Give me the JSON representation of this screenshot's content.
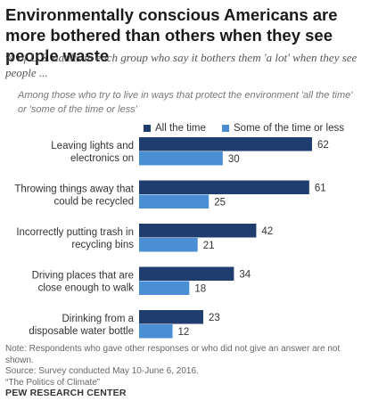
{
  "title": "Environmentally conscious Americans are more bothered than others when they see people waste",
  "subtitle": "% of U.S. adults in each group who say it bothers them 'a lot' when they see people ...",
  "group_note": "Among those who try to live in ways that protect the environment 'all the time' or 'some of the time or less'",
  "chart_data": {
    "type": "bar",
    "orientation": "horizontal",
    "categories": [
      [
        "Leaving lights and",
        "electronics on"
      ],
      [
        "Throwing  things away that",
        "could be recycled"
      ],
      [
        "Incorrectly putting trash in",
        "recycling bins"
      ],
      [
        "Driving places that are",
        "close enough to walk"
      ],
      [
        "Dirinking from a",
        "disposable water bottle"
      ]
    ],
    "series": [
      {
        "name": "All the time",
        "color": "#1f3d6e",
        "values": [
          62,
          61,
          42,
          34,
          23
        ]
      },
      {
        "name": "Some of the time or less",
        "color": "#4a8fd4",
        "values": [
          30,
          25,
          21,
          18,
          12
        ]
      }
    ],
    "xlim": [
      0,
      70
    ],
    "grid": false,
    "legend_position": "top"
  },
  "footer": {
    "note": "Note: Respondents who gave other responses or who did not give an answer are not shown.",
    "source": "Source: Survey conducted May 10-June 6, 2016.",
    "report": "“The Politics of Climate”",
    "org": "PEW RESEARCH CENTER"
  }
}
